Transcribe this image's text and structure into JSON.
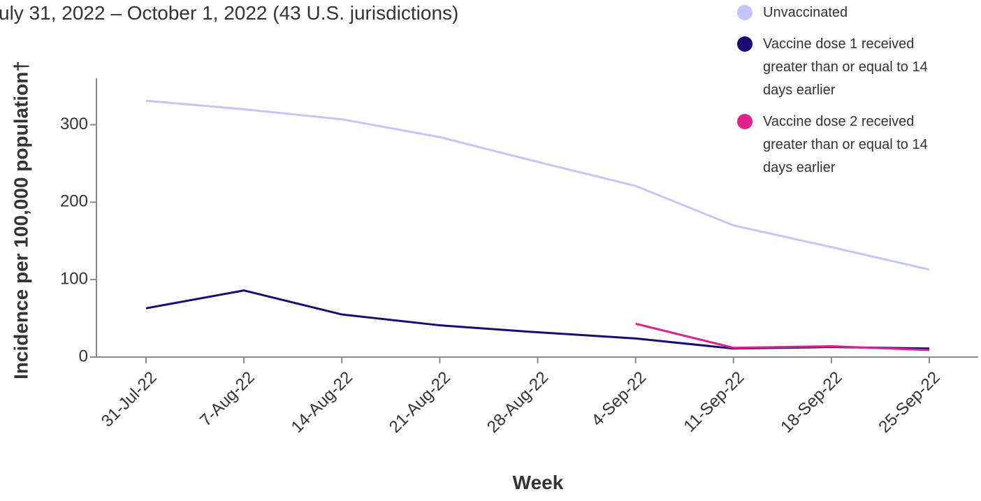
{
  "chart_data": {
    "type": "line",
    "title": "uly 31, 2022 – October 1, 2022 (43 U.S. jurisdictions)",
    "x_label": "Week",
    "y_label": "Incidence per 100,000 population†",
    "categories": [
      "31-Jul-22",
      "7-Aug-22",
      "14-Aug-22",
      "21-Aug-22",
      "28-Aug-22",
      "4-Sep-22",
      "11-Sep-22",
      "18-Sep-22",
      "25-Sep-22"
    ],
    "series": [
      {
        "name": "Unvaccinated",
        "color": "#c5c5f7",
        "values": [
          331,
          320,
          307,
          284,
          252,
          221,
          170,
          142,
          113
        ]
      },
      {
        "name": "Vaccine dose 1 received greater than or equal to 14 days earlier",
        "color": "#1a0a73",
        "values": [
          63,
          86,
          55,
          41,
          32,
          24,
          11,
          13,
          11
        ]
      },
      {
        "name": "Vaccine dose 2 received greater than or equal to 14 days earlier",
        "color": "#e0208d",
        "values": [
          null,
          null,
          null,
          null,
          null,
          43,
          12,
          14,
          9
        ]
      }
    ],
    "ylim": [
      0,
      360
    ],
    "yticks": [
      0,
      100,
      200,
      300
    ],
    "legend": "top-right"
  }
}
